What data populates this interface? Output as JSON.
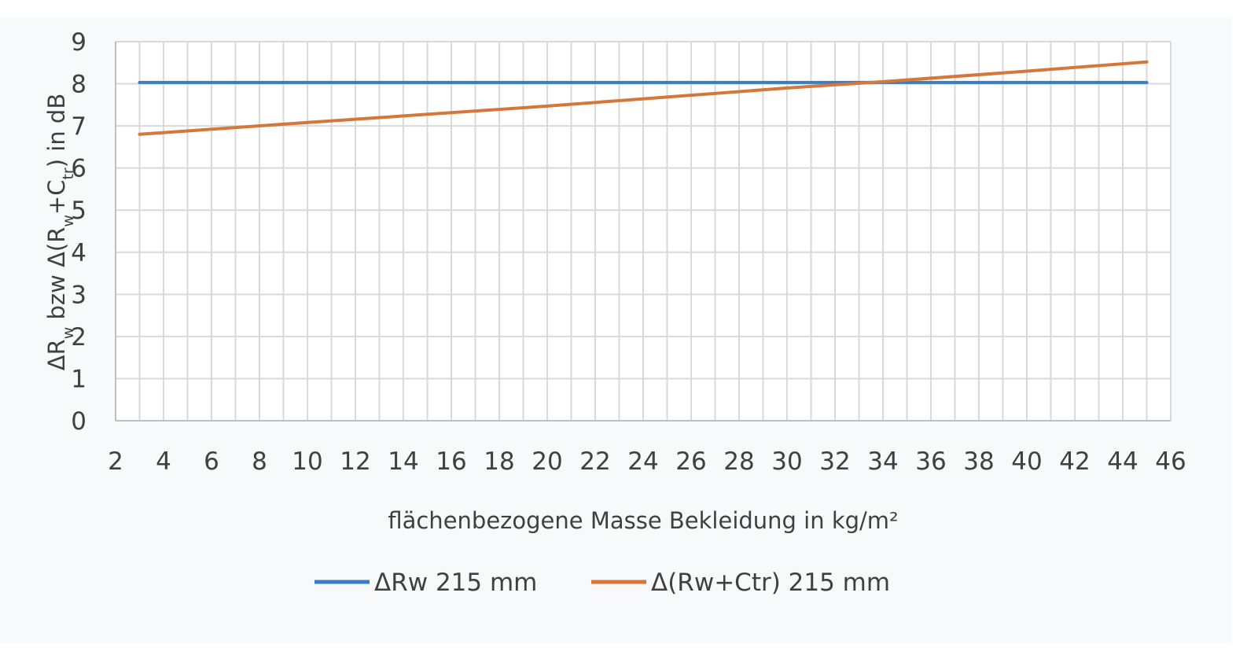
{
  "chart_data": {
    "type": "line",
    "xlabel": "flächenbezogene Masse Bekleidung in kg/m²",
    "ylabel": "ΔRw bzw Δ(Rw+Ctr) in dB",
    "ylabel_parts": {
      "p1": "ΔR",
      "sub1": "w",
      "p2": " bzw Δ(R",
      "sub2": "w",
      "p3": "+C",
      "sub3": "tr",
      "p4": ") in dB"
    },
    "xlim": [
      2,
      46
    ],
    "ylim": [
      0,
      9
    ],
    "x_ticks": [
      2,
      4,
      6,
      8,
      10,
      12,
      14,
      16,
      18,
      20,
      22,
      24,
      26,
      28,
      30,
      32,
      34,
      36,
      38,
      40,
      42,
      44,
      46
    ],
    "y_ticks": [
      0,
      1,
      2,
      3,
      4,
      5,
      6,
      7,
      8,
      9
    ],
    "grid": true,
    "legend_position": "bottom",
    "series": [
      {
        "name": "ΔRw 215 mm",
        "color": "#3a7dc0",
        "x": [
          3,
          45
        ],
        "y": [
          8.03,
          8.03
        ]
      },
      {
        "name": "Δ(Rw+Ctr) 215 mm",
        "color": "#d5773a",
        "x": [
          3,
          10,
          20,
          30,
          34,
          40,
          45
        ],
        "y": [
          6.8,
          7.08,
          7.47,
          7.9,
          8.05,
          8.3,
          8.52
        ]
      }
    ]
  }
}
